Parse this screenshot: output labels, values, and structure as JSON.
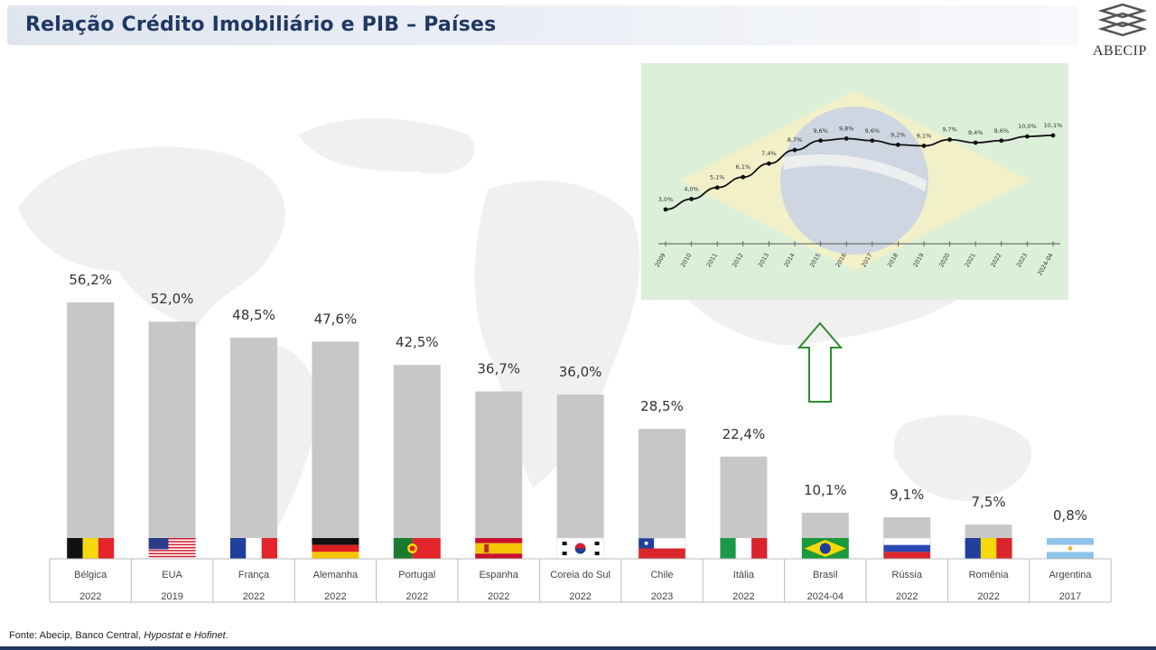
{
  "header": {
    "title": "Relação Crédito Imobiliário e PIB – Países"
  },
  "logo": {
    "text": "ABECIP"
  },
  "footer": {
    "prefix": "Fonte: Abecip, Banco Central, ",
    "source1": "Hypostat",
    "conj": " e ",
    "source2": "Hofinet",
    "suffix": "."
  },
  "colors": {
    "bar": "#c7c7c7",
    "title": "#1f3864",
    "line": "#111111",
    "arrow": "#2e8b2e",
    "inset_bg": "#dcefd9"
  },
  "chart_data": [
    {
      "type": "bar",
      "title": "",
      "xlabel": "",
      "ylabel": "",
      "ylim": [
        0,
        60
      ],
      "grid": false,
      "categories": [
        "Bélgica",
        "EUA",
        "França",
        "Alemanha",
        "Portugal",
        "Espanha",
        "Coreia do Sul",
        "Chile",
        "Itália",
        "Brasil",
        "Rússia",
        "Romênia",
        "Argentina"
      ],
      "years": [
        "2022",
        "2019",
        "2022",
        "2022",
        "2022",
        "2022",
        "2022",
        "2023",
        "2022",
        "2024-04",
        "2022",
        "2022",
        "2017"
      ],
      "flags": [
        "belgium-flag",
        "usa-flag",
        "france-flag",
        "germany-flag",
        "portugal-flag",
        "spain-flag",
        "south-korea-flag",
        "chile-flag",
        "italy-flag",
        "brazil-flag",
        "russia-flag",
        "romania-flag",
        "argentina-flag"
      ],
      "values": [
        56.2,
        52.0,
        48.5,
        47.6,
        42.5,
        36.7,
        36.0,
        28.5,
        22.4,
        10.1,
        9.1,
        7.5,
        0.8
      ],
      "labels": [
        "56,2%",
        "52,0%",
        "48,5%",
        "47,6%",
        "42,5%",
        "36,7%",
        "36,0%",
        "28,5%",
        "22,4%",
        "10,1%",
        "9,1%",
        "7,5%",
        "0,8%"
      ]
    },
    {
      "type": "line",
      "title": "",
      "xlabel": "",
      "ylabel": "",
      "ylim": [
        2.5,
        11
      ],
      "grid": false,
      "x": [
        "2009",
        "2010",
        "2011",
        "2012",
        "2013",
        "2014",
        "2015",
        "2016",
        "2017",
        "2018",
        "2019",
        "2020",
        "2021",
        "2022",
        "2023",
        "2024-04"
      ],
      "values": [
        3.0,
        4.0,
        5.1,
        6.1,
        7.4,
        8.7,
        9.6,
        9.8,
        9.6,
        9.2,
        9.1,
        9.7,
        9.4,
        9.6,
        10.0,
        10.1
      ],
      "labels": [
        "3,0%",
        "4,0%",
        "5,1%",
        "6,1%",
        "7,4%",
        "8,7%",
        "9,6%",
        "9,8%",
        "9,6%",
        "9,2%",
        "9,1%",
        "9,7%",
        "9,4%",
        "9,6%",
        "10,0%",
        "10,1%"
      ]
    }
  ]
}
